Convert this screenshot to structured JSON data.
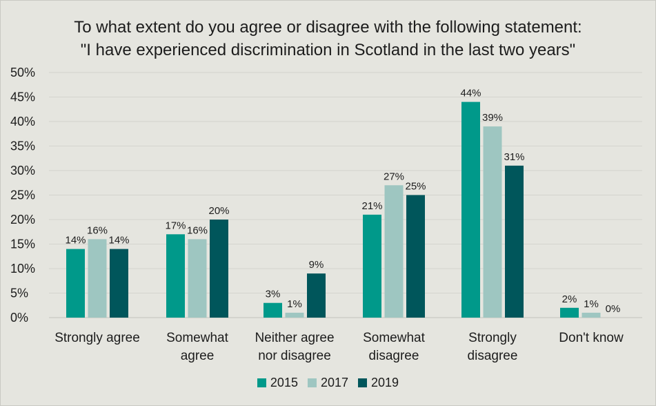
{
  "colors": {
    "background": "#e5e5df",
    "gridline": "#d4d4ce",
    "series": [
      "#00998a",
      "#9ec6c1",
      "#00565b"
    ]
  },
  "chart_data": {
    "type": "bar",
    "title_lines": [
      "To what extent do you agree or disagree with the following statement:",
      "\"I have experienced discrimination in Scotland in the last two years\""
    ],
    "categories": [
      [
        "Strongly agree"
      ],
      [
        "Somewhat",
        "agree"
      ],
      [
        "Neither agree",
        "nor disagree"
      ],
      [
        "Somewhat",
        "disagree"
      ],
      [
        "Strongly",
        "disagree"
      ],
      [
        "Don't know"
      ]
    ],
    "series": [
      {
        "name": "2015",
        "values": [
          14,
          17,
          3,
          21,
          44,
          2
        ],
        "labels": [
          "14%",
          "17%",
          "3%",
          "21%",
          "44%",
          "2%"
        ]
      },
      {
        "name": "2017",
        "values": [
          16,
          16,
          1,
          27,
          39,
          1
        ],
        "labels": [
          "16%",
          "16%",
          "1%",
          "27%",
          "39%",
          "1%"
        ]
      },
      {
        "name": "2019",
        "values": [
          14,
          20,
          9,
          25,
          31,
          0
        ],
        "labels": [
          "14%",
          "20%",
          "9%",
          "25%",
          "31%",
          "0%"
        ]
      }
    ],
    "y_ticks": [
      {
        "value": 0,
        "label": "0%"
      },
      {
        "value": 5,
        "label": "5%"
      },
      {
        "value": 10,
        "label": "10%"
      },
      {
        "value": 15,
        "label": "15%"
      },
      {
        "value": 20,
        "label": "20%"
      },
      {
        "value": 25,
        "label": "25%"
      },
      {
        "value": 30,
        "label": "30%"
      },
      {
        "value": 35,
        "label": "35%"
      },
      {
        "value": 40,
        "label": "40%"
      },
      {
        "value": 45,
        "label": "45%"
      },
      {
        "value": 50,
        "label": "50%"
      }
    ],
    "ylim": [
      0,
      50
    ],
    "grid": true,
    "legend_position": "bottom"
  }
}
